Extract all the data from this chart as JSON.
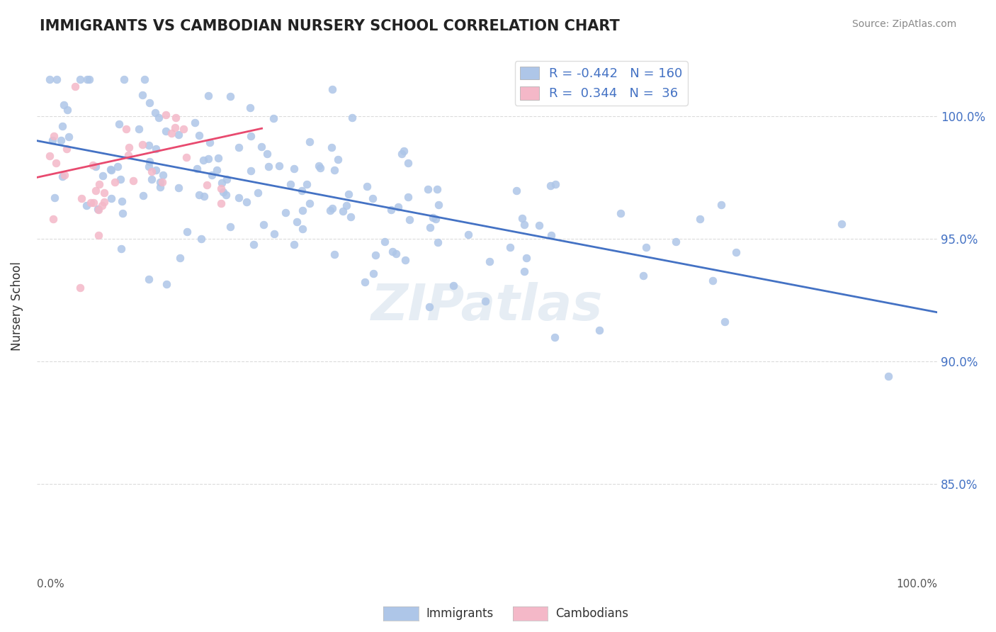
{
  "title": "IMMIGRANTS VS CAMBODIAN NURSERY SCHOOL CORRELATION CHART",
  "source": "Source: ZipAtlas.com",
  "ylabel": "Nursery School",
  "legend_immigrants": {
    "R": -0.442,
    "N": 160,
    "color": "#aec6e8",
    "label": "Immigrants"
  },
  "legend_cambodians": {
    "R": 0.344,
    "N": 36,
    "color": "#f4b8c8",
    "label": "Cambodians"
  },
  "ytick_labels": [
    "85.0%",
    "90.0%",
    "95.0%",
    "100.0%"
  ],
  "ytick_values": [
    0.85,
    0.9,
    0.95,
    1.0
  ],
  "xlim": [
    0.0,
    1.0
  ],
  "ylim": [
    0.82,
    1.025
  ],
  "blue_scatter_color": "#aec6e8",
  "pink_scatter_color": "#f4b8c8",
  "blue_line_color": "#4472c4",
  "pink_line_color": "#e84a6f",
  "watermark": "ZIPatlas",
  "background_color": "#ffffff",
  "grid_color": "#cccccc",
  "title_color": "#222222"
}
